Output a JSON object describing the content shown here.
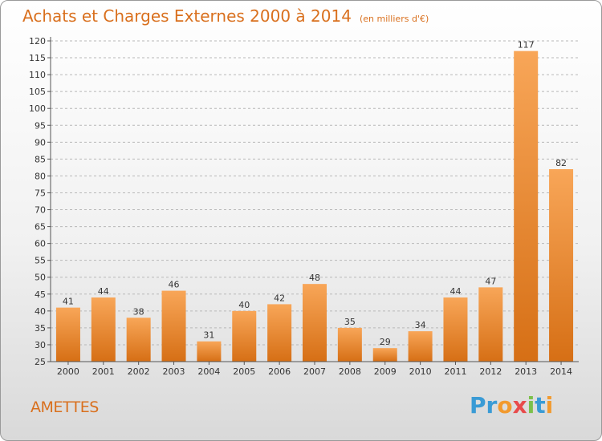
{
  "header": {
    "title": "Achats et Charges Externes 2000 à 2014",
    "subtitle": "(en milliers d'€)"
  },
  "footer": {
    "commune": "AMETTES",
    "logo_text": "Proxiti",
    "logo_letters": [
      {
        "ch": "P",
        "color": "#3a9bd5"
      },
      {
        "ch": "r",
        "color": "#3a9bd5"
      },
      {
        "ch": "o",
        "color": "#f29a2e"
      },
      {
        "ch": "x",
        "color": "#e84b4b"
      },
      {
        "ch": "i",
        "color": "#7cc04b"
      },
      {
        "ch": "t",
        "color": "#3a9bd5"
      },
      {
        "ch": "i",
        "color": "#f29a2e"
      }
    ]
  },
  "colors": {
    "accent": "#d9701e",
    "bar_light": "#f8a658",
    "bar_dark": "#d66f15",
    "grid": "#b8b8b8",
    "axis": "#555555"
  },
  "chart_data": {
    "type": "bar",
    "categories": [
      "2000",
      "2001",
      "2002",
      "2003",
      "2004",
      "2005",
      "2006",
      "2007",
      "2008",
      "2009",
      "2010",
      "2011",
      "2012",
      "2013",
      "2014"
    ],
    "values": [
      41,
      44,
      38,
      46,
      31,
      40,
      42,
      48,
      35,
      29,
      34,
      44,
      47,
      117,
      82
    ],
    "data_labels": [
      "41",
      "44",
      "38",
      "46",
      "31",
      "40",
      "42",
      "48",
      "35",
      "29",
      "34",
      "44",
      "47",
      "117",
      "82"
    ],
    "ylim": [
      25,
      120
    ],
    "yticks": [
      25,
      30,
      35,
      40,
      45,
      50,
      55,
      60,
      65,
      70,
      75,
      80,
      85,
      90,
      95,
      100,
      105,
      110,
      115,
      120
    ],
    "ytick_labels": [
      "25",
      "30",
      "35",
      "40",
      "45",
      "50",
      "55",
      "60",
      "65",
      "70",
      "75",
      "80",
      "85",
      "90",
      "95",
      "100",
      "105",
      "110",
      "115",
      "120"
    ],
    "grid": "horizontal dashed",
    "legend": "none"
  }
}
